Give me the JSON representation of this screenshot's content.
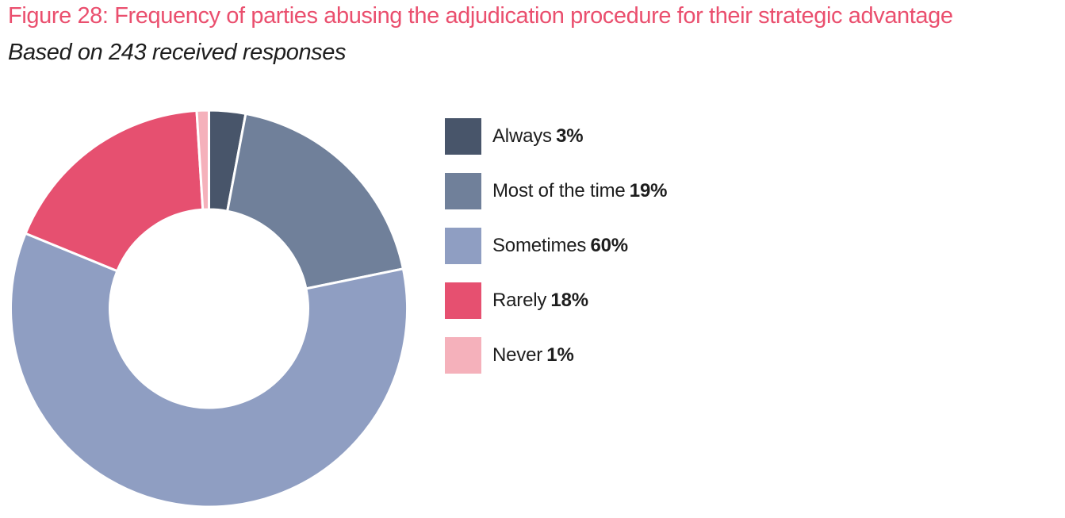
{
  "chart_data": {
    "type": "pie",
    "subtype": "donut",
    "title": "Figure 28: Frequency of parties abusing the adjudication procedure for their strategic advantage",
    "subtitle": "Based on 243 received responses",
    "sample_size": 243,
    "categories": [
      "Always",
      "Most of the time",
      "Sometimes",
      "Rarely",
      "Never"
    ],
    "values": [
      3,
      19,
      60,
      18,
      1
    ],
    "unit": "%",
    "series": [
      {
        "name": "Always",
        "value": 3,
        "pct_label": "3%",
        "color": "#48556a"
      },
      {
        "name": "Most of the time",
        "value": 19,
        "pct_label": "19%",
        "color": "#70809a"
      },
      {
        "name": "Sometimes",
        "value": 60,
        "pct_label": "60%",
        "color": "#8f9ec2"
      },
      {
        "name": "Rarely",
        "value": 18,
        "pct_label": "18%",
        "color": "#e65070"
      },
      {
        "name": "Never",
        "value": 1,
        "pct_label": "1%",
        "color": "#f5b1bb"
      }
    ],
    "legend_position": "right",
    "start_angle_deg": 0,
    "direction": "clockwise",
    "donut_hole_ratio": 0.5,
    "segment_gap_color": "#ffffff",
    "title_color": "#ea4f6e",
    "text_color": "#1e1e1e"
  }
}
